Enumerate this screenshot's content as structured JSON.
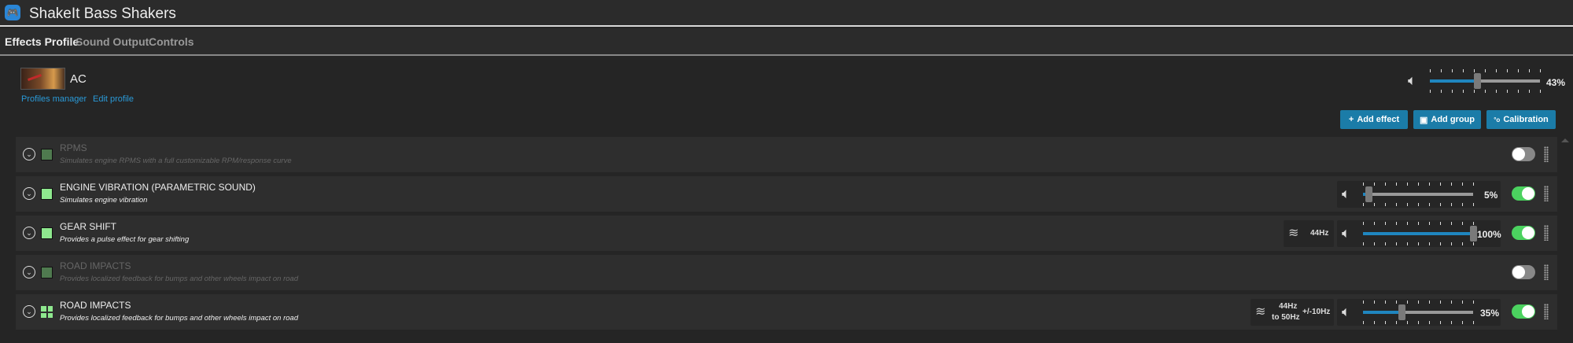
{
  "app": {
    "title": "ShakeIt Bass Shakers",
    "icon": "gamepad-icon"
  },
  "tabs": [
    {
      "label": "Effects Profile",
      "active": true
    },
    {
      "label": "Sound Output",
      "active": false
    },
    {
      "label": "Controls",
      "active": false
    }
  ],
  "profile": {
    "name": "AC",
    "profiles_manager": "Profiles manager",
    "edit_profile": "Edit profile",
    "master_volume": 43,
    "master_volume_label": "43%"
  },
  "toolbar": {
    "add_effect": "Add effect",
    "add_group": "Add group",
    "calibration": "Calibration",
    "accent": "#1b7ca8"
  },
  "effects": [
    {
      "name": "RPMS",
      "description": "Simulates engine RPMS with a full customizable RPM/response curve",
      "enabled": false
    },
    {
      "name": "ENGINE VIBRATION (PARAMETRIC SOUND)",
      "description": "Simulates engine vibration",
      "enabled": true,
      "volume": 5,
      "volume_label": "5%"
    },
    {
      "name": "GEAR SHIFT",
      "description": "Provides a pulse effect for gear shifting",
      "enabled": true,
      "frequency": "44Hz",
      "volume": 100,
      "volume_label": "100%"
    },
    {
      "name": "ROAD IMPACTS",
      "description": "Provides localized feedback for bumps and other wheels impact on road",
      "enabled": false
    },
    {
      "name": "ROAD IMPACTS",
      "description": "Provides localized feedback for bumps and other wheels impact on road",
      "enabled": true,
      "frequency_from": "44Hz",
      "frequency_to": "to 50Hz",
      "frequency_variance": "+/-10Hz",
      "volume": 35,
      "volume_label": "35%"
    }
  ],
  "colors": {
    "enabled_toggle": "#4bd25f",
    "slider_fill": "#1f86bf",
    "link": "#2a9ad8"
  }
}
